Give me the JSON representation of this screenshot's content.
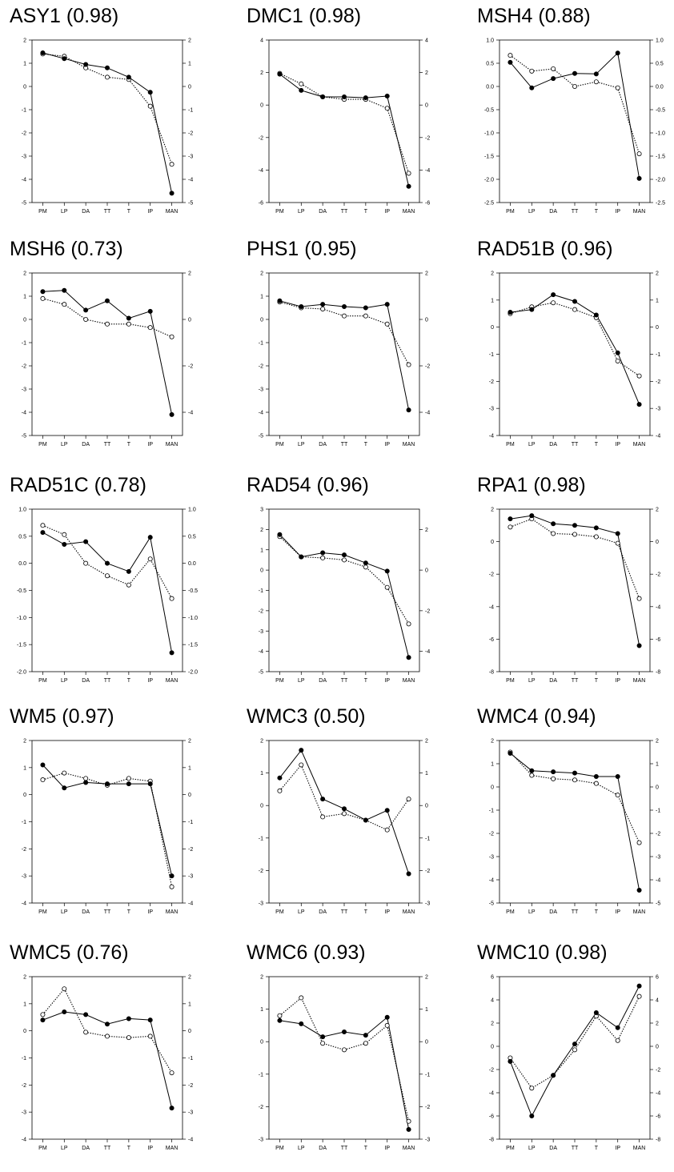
{
  "chart_data": [
    {
      "type": "line",
      "title": "ASY1 (0.98)",
      "categories": [
        "PM",
        "LP",
        "DA",
        "TT",
        "T",
        "IP",
        "MAN"
      ],
      "ylim": [
        -5,
        2
      ],
      "yticks": [
        2,
        1,
        0,
        -1,
        -2,
        -3,
        -4,
        -5
      ],
      "series": [
        {
          "marker": "filled",
          "style": "solid",
          "values": [
            1.45,
            1.2,
            0.95,
            0.8,
            0.4,
            -0.25,
            -4.6
          ]
        },
        {
          "marker": "open",
          "style": "dotted",
          "values": [
            1.4,
            1.3,
            0.8,
            0.4,
            0.3,
            -0.85,
            -3.35
          ]
        }
      ]
    },
    {
      "type": "line",
      "title": "DMC1 (0.98)",
      "categories": [
        "PM",
        "LP",
        "DA",
        "TT",
        "T",
        "IP",
        "MAN"
      ],
      "ylim": [
        -6,
        4
      ],
      "yticks": [
        4,
        2,
        0,
        -2,
        -4,
        -6
      ],
      "series": [
        {
          "marker": "filled",
          "style": "solid",
          "values": [
            1.9,
            0.9,
            0.5,
            0.5,
            0.45,
            0.55,
            -5.0
          ]
        },
        {
          "marker": "open",
          "style": "dotted",
          "values": [
            1.95,
            1.3,
            0.5,
            0.35,
            0.35,
            -0.2,
            -4.2
          ]
        }
      ]
    },
    {
      "type": "line",
      "title": "MSH4 (0.88)",
      "categories": [
        "PM",
        "LP",
        "DA",
        "TT",
        "T",
        "IP",
        "MAN"
      ],
      "ylim": [
        -2.5,
        1.0
      ],
      "yticks": [
        "1.0",
        "0.5",
        "0.0",
        "-0.5",
        "-1.0",
        "-1.5",
        "-2.0",
        "-2.5"
      ],
      "series": [
        {
          "marker": "filled",
          "style": "solid",
          "values": [
            0.52,
            -0.03,
            0.17,
            0.28,
            0.27,
            0.72,
            -1.98
          ]
        },
        {
          "marker": "open",
          "style": "dotted",
          "values": [
            0.67,
            0.33,
            0.38,
            0.0,
            0.1,
            -0.03,
            -1.45
          ]
        }
      ]
    },
    {
      "type": "line",
      "title": "MSH6 (0.73)",
      "categories": [
        "PM",
        "LP",
        "DA",
        "TT",
        "T",
        "IP",
        "MAN"
      ],
      "ylim": [
        -5,
        2
      ],
      "yticks": [
        2,
        1,
        0,
        -1,
        -2,
        -3,
        -4,
        -5
      ],
      "yticks_right": [
        2,
        0,
        -2,
        -4
      ],
      "series": [
        {
          "marker": "filled",
          "style": "solid",
          "values": [
            1.2,
            1.25,
            0.4,
            0.8,
            0.05,
            0.35,
            -4.1
          ]
        },
        {
          "marker": "open",
          "style": "dotted",
          "values": [
            0.9,
            0.65,
            0.0,
            -0.2,
            -0.2,
            -0.35,
            -0.75
          ]
        }
      ]
    },
    {
      "type": "line",
      "title": "PHS1 (0.95)",
      "categories": [
        "PM",
        "LP",
        "DA",
        "TT",
        "T",
        "IP",
        "MAN"
      ],
      "ylim": [
        -5,
        2
      ],
      "yticks": [
        2,
        1,
        0,
        -1,
        -2,
        -3,
        -4,
        -5
      ],
      "yticks_right": [
        2,
        0,
        -2,
        -4
      ],
      "series": [
        {
          "marker": "filled",
          "style": "solid",
          "values": [
            0.8,
            0.55,
            0.65,
            0.55,
            0.5,
            0.65,
            -3.9
          ]
        },
        {
          "marker": "open",
          "style": "dotted",
          "values": [
            0.75,
            0.5,
            0.45,
            0.15,
            0.15,
            -0.2,
            -1.95
          ]
        }
      ]
    },
    {
      "type": "line",
      "title": "RAD51B (0.96)",
      "categories": [
        "PM",
        "LP",
        "DA",
        "TT",
        "T",
        "IP",
        "MAN"
      ],
      "ylim": [
        -4,
        2
      ],
      "yticks": [
        2,
        1,
        0,
        -1,
        -2,
        -3,
        -4
      ],
      "series": [
        {
          "marker": "filled",
          "style": "solid",
          "values": [
            0.55,
            0.65,
            1.2,
            0.95,
            0.45,
            -0.95,
            -2.85
          ]
        },
        {
          "marker": "open",
          "style": "dotted",
          "values": [
            0.5,
            0.75,
            0.9,
            0.65,
            0.35,
            -1.25,
            -1.8
          ]
        }
      ]
    },
    {
      "type": "line",
      "title": "RAD51C (0.78)",
      "categories": [
        "PM",
        "LP",
        "DA",
        "TT",
        "T",
        "IP",
        "MAN"
      ],
      "ylim": [
        -2.0,
        1.0
      ],
      "yticks": [
        "1.0",
        "0.5",
        "0.0",
        "-0.5",
        "-1.0",
        "-1.5",
        "-2.0"
      ],
      "series": [
        {
          "marker": "filled",
          "style": "solid",
          "values": [
            0.57,
            0.35,
            0.4,
            0.0,
            -0.15,
            0.48,
            -1.65
          ]
        },
        {
          "marker": "open",
          "style": "dotted",
          "values": [
            0.7,
            0.53,
            0.0,
            -0.23,
            -0.4,
            0.08,
            -0.65
          ]
        }
      ]
    },
    {
      "type": "line",
      "title": "RAD54 (0.96)",
      "categories": [
        "PM",
        "LP",
        "DA",
        "TT",
        "T",
        "IP",
        "MAN"
      ],
      "ylim": [
        -5,
        3
      ],
      "yticks": [
        3,
        2,
        1,
        0,
        -1,
        -2,
        -3,
        -4,
        -5
      ],
      "yticks_right": [
        2,
        0,
        -2,
        -4
      ],
      "series": [
        {
          "marker": "filled",
          "style": "solid",
          "values": [
            1.75,
            0.65,
            0.85,
            0.75,
            0.35,
            -0.05,
            -4.3
          ]
        },
        {
          "marker": "open",
          "style": "dotted",
          "values": [
            1.65,
            0.65,
            0.6,
            0.5,
            0.15,
            -0.85,
            -2.65
          ]
        }
      ]
    },
    {
      "type": "line",
      "title": "RPA1 (0.98)",
      "categories": [
        "PM",
        "LP",
        "DA",
        "TT",
        "T",
        "IP",
        "MAN"
      ],
      "ylim": [
        -8,
        2
      ],
      "yticks": [
        2,
        0,
        -2,
        -4,
        -6,
        -8
      ],
      "series": [
        {
          "marker": "filled",
          "style": "solid",
          "values": [
            1.4,
            1.6,
            1.1,
            1.0,
            0.85,
            0.5,
            -6.4
          ]
        },
        {
          "marker": "open",
          "style": "dotted",
          "values": [
            0.9,
            1.4,
            0.5,
            0.45,
            0.3,
            -0.1,
            -3.5
          ]
        }
      ]
    },
    {
      "type": "line",
      "title": "WM5 (0.97)",
      "categories": [
        "PM",
        "LP",
        "DA",
        "TT",
        "T",
        "IP",
        "MAN"
      ],
      "ylim": [
        -4,
        2
      ],
      "yticks": [
        2,
        1,
        0,
        -1,
        -2,
        -3,
        -4
      ],
      "series": [
        {
          "marker": "filled",
          "style": "solid",
          "values": [
            1.1,
            0.25,
            0.45,
            0.4,
            0.4,
            0.4,
            -3.0
          ]
        },
        {
          "marker": "open",
          "style": "dotted",
          "values": [
            0.55,
            0.8,
            0.6,
            0.35,
            0.6,
            0.5,
            -3.4
          ]
        }
      ]
    },
    {
      "type": "line",
      "title": "WMC3 (0.50)",
      "categories": [
        "PM",
        "LP",
        "DA",
        "TT",
        "T",
        "IP",
        "MAN"
      ],
      "ylim": [
        -3,
        2
      ],
      "yticks": [
        2,
        1,
        0,
        -1,
        -2,
        -3
      ],
      "series": [
        {
          "marker": "filled",
          "style": "solid",
          "values": [
            0.85,
            1.7,
            0.2,
            -0.1,
            -0.45,
            -0.15,
            -2.1
          ]
        },
        {
          "marker": "open",
          "style": "dotted",
          "values": [
            0.45,
            1.25,
            -0.35,
            -0.25,
            -0.45,
            -0.75,
            0.2
          ]
        }
      ]
    },
    {
      "type": "line",
      "title": "WMC4 (0.94)",
      "categories": [
        "PM",
        "LP",
        "DA",
        "TT",
        "T",
        "IP",
        "MAN"
      ],
      "ylim": [
        -5,
        2
      ],
      "yticks": [
        2,
        1,
        0,
        -1,
        -2,
        -3,
        -4,
        -5
      ],
      "series": [
        {
          "marker": "filled",
          "style": "solid",
          "values": [
            1.45,
            0.7,
            0.65,
            0.6,
            0.45,
            0.45,
            -4.45
          ]
        },
        {
          "marker": "open",
          "style": "dotted",
          "values": [
            1.5,
            0.5,
            0.35,
            0.3,
            0.15,
            -0.35,
            -2.4
          ]
        }
      ]
    },
    {
      "type": "line",
      "title": "WMC5 (0.76)",
      "categories": [
        "PM",
        "LP",
        "DA",
        "TT",
        "T",
        "IP",
        "MAN"
      ],
      "ylim": [
        -4,
        2
      ],
      "yticks": [
        2,
        1,
        0,
        -1,
        -2,
        -3,
        -4
      ],
      "series": [
        {
          "marker": "filled",
          "style": "solid",
          "values": [
            0.4,
            0.7,
            0.6,
            0.25,
            0.45,
            0.4,
            -2.85
          ]
        },
        {
          "marker": "open",
          "style": "dotted",
          "values": [
            0.6,
            1.55,
            -0.05,
            -0.2,
            -0.25,
            -0.2,
            -1.55
          ]
        }
      ]
    },
    {
      "type": "line",
      "title": "WMC6 (0.93)",
      "categories": [
        "PM",
        "LP",
        "DA",
        "TT",
        "T",
        "IP",
        "MAN"
      ],
      "ylim": [
        -3,
        2
      ],
      "yticks": [
        2,
        1,
        0,
        -1,
        -2,
        -3
      ],
      "series": [
        {
          "marker": "filled",
          "style": "solid",
          "values": [
            0.65,
            0.55,
            0.15,
            0.3,
            0.2,
            0.75,
            -2.7
          ]
        },
        {
          "marker": "open",
          "style": "dotted",
          "values": [
            0.8,
            1.35,
            -0.05,
            -0.25,
            -0.05,
            0.5,
            -2.45
          ]
        }
      ]
    },
    {
      "type": "line",
      "title": "WMC10 (0.98)",
      "categories": [
        "PM",
        "LP",
        "DA",
        "TT",
        "T",
        "IP",
        "MAN"
      ],
      "ylim": [
        -8,
        6
      ],
      "yticks": [
        6,
        4,
        2,
        0,
        -2,
        -4,
        -6,
        -8
      ],
      "series": [
        {
          "marker": "filled",
          "style": "solid",
          "values": [
            -1.3,
            -6.0,
            -2.5,
            0.2,
            2.9,
            1.6,
            5.2
          ]
        },
        {
          "marker": "open",
          "style": "dotted",
          "values": [
            -1.0,
            -3.6,
            -2.5,
            -0.3,
            2.6,
            0.5,
            4.3
          ]
        }
      ]
    }
  ]
}
